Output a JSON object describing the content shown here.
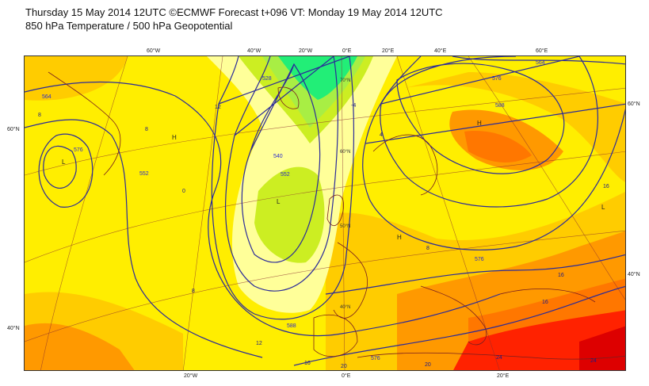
{
  "header": {
    "title": "Thursday 15 May 2014 12UTC ©ECMWF Forecast t+096 VT: Monday 19 May 2014 12UTC",
    "subtitle": "850 hPa Temperature / 500 hPa Geopotential"
  },
  "map": {
    "top_lon_labels": [
      "60°W",
      "40°W",
      "20°W",
      "0°E",
      "20°E",
      "40°E",
      "60°E"
    ],
    "bottom_lon_labels": [
      "20°W",
      "0°E",
      "20°E"
    ],
    "left_lat_labels": [
      "60°N",
      "40°N"
    ],
    "right_lat_labels": [
      "60°N",
      "40°N"
    ],
    "inner_lat_labels": [
      "70°N",
      "60°N",
      "50°N",
      "40°N"
    ],
    "pressure_centers": [
      {
        "label": "L"
      },
      {
        "label": "H"
      },
      {
        "label": "L"
      },
      {
        "label": "H"
      },
      {
        "label": "H"
      },
      {
        "label": "L"
      }
    ],
    "geopotential_labels": [
      "564",
      "576",
      "552",
      "540",
      "528",
      "576",
      "588",
      "564",
      "576",
      "588",
      "552",
      "576"
    ],
    "temperature_labels": [
      "8",
      "-4",
      "12",
      "8",
      "4",
      "0",
      "8",
      "12",
      "16",
      "8",
      "16",
      "16",
      "16",
      "20",
      "24",
      "20",
      "24"
    ],
    "colors": {
      "green_cold": "#22ee77",
      "light_green": "#a8ee44",
      "yellow_green": "#ccee22",
      "pale_yellow": "#ffff99",
      "yellow": "#ffee00",
      "light_orange": "#ffcc00",
      "orange": "#ff9900",
      "dark_orange": "#ff7700",
      "red": "#ff2200",
      "dark_red": "#dd0000",
      "isoline": "#2b2b99",
      "coast": "#7a1f1f"
    }
  }
}
